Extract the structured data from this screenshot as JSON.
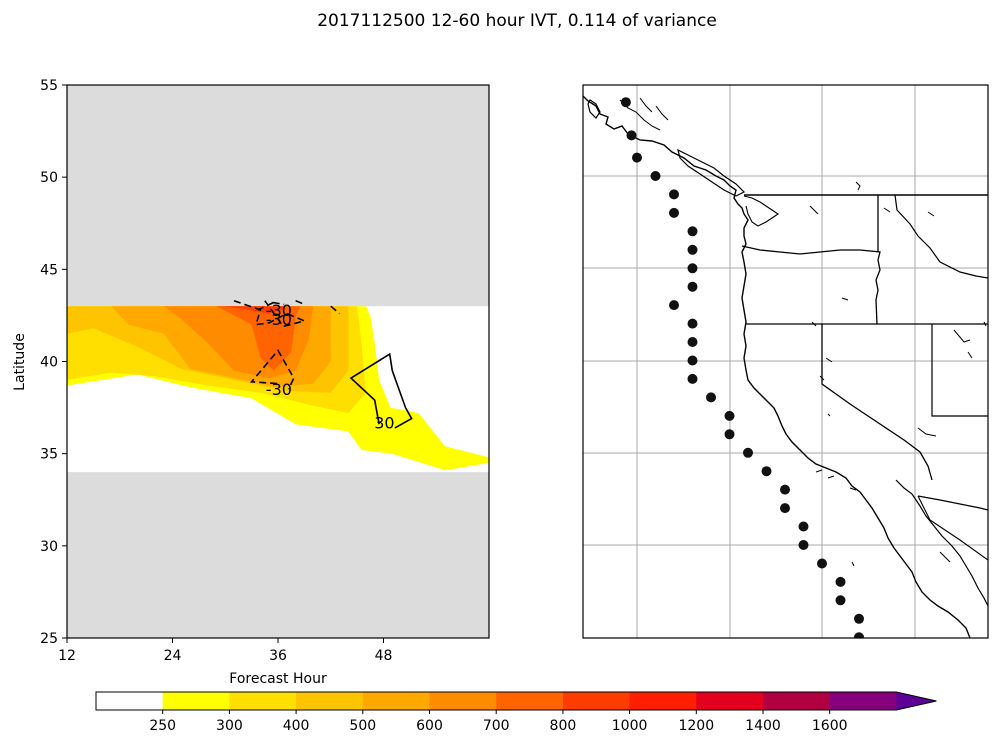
{
  "figure": {
    "title": "2017112500 12-60 hour IVT, 0.114 of variance"
  },
  "chart_data": [
    {
      "type": "contour",
      "xlabel": "Forecast Hour",
      "ylabel": "Latitude",
      "xlim": [
        12,
        60
      ],
      "ylim": [
        25,
        55
      ],
      "xticks": [
        12,
        24,
        36,
        48
      ],
      "yticks": [
        25,
        30,
        35,
        40,
        45,
        50,
        55
      ],
      "masked_regions": [
        {
          "lat_range": [
            43,
            55
          ],
          "color": "#dcdcdc"
        },
        {
          "lat_range": [
            25,
            34
          ],
          "color": "#dcdcdc"
        }
      ],
      "valid_lat_range": [
        34,
        43
      ],
      "filled_contours": [
        {
          "level": 250,
          "color": "#ffff00",
          "polygon": [
            [
              12,
              43
            ],
            [
              12,
              38.7
            ],
            [
              20,
              39.3
            ],
            [
              26,
              38.6
            ],
            [
              33,
              38
            ],
            [
              38,
              36.6
            ],
            [
              44,
              36.2
            ],
            [
              45.5,
              35.2
            ],
            [
              49,
              35
            ],
            [
              55,
              34.1
            ],
            [
              60,
              34.5
            ],
            [
              60,
              34.8
            ],
            [
              55,
              35.4
            ],
            [
              52,
              37.2
            ],
            [
              48.8,
              37.5
            ],
            [
              47.5,
              39
            ],
            [
              47,
              41
            ],
            [
              46.5,
              42.5
            ],
            [
              46,
              43
            ]
          ]
        },
        {
          "level": 300,
          "color": "#ffdf00",
          "polygon": [
            [
              12,
              43
            ],
            [
              12,
              39
            ],
            [
              17,
              39.4
            ],
            [
              22,
              39.2
            ],
            [
              28,
              38.7
            ],
            [
              34,
              38.3
            ],
            [
              40,
              37.6
            ],
            [
              44,
              37.2
            ],
            [
              46,
              38.3
            ],
            [
              45.5,
              41
            ],
            [
              45,
              43
            ]
          ]
        },
        {
          "level": 400,
          "color": "#ffc400",
          "polygon": [
            [
              12,
              43
            ],
            [
              12,
              41.5
            ],
            [
              15,
              41.8
            ],
            [
              20,
              40.8
            ],
            [
              25,
              39.6
            ],
            [
              31,
              39
            ],
            [
              37,
              38.4
            ],
            [
              42,
              38.3
            ],
            [
              44,
              39.5
            ],
            [
              44,
              43
            ]
          ]
        },
        {
          "level": 500,
          "color": "#ffa800",
          "polygon": [
            [
              17,
              43
            ],
            [
              19,
              42
            ],
            [
              23,
              41.5
            ],
            [
              26,
              39.6
            ],
            [
              31,
              39.1
            ],
            [
              36,
              38.6
            ],
            [
              40,
              38.8
            ],
            [
              42,
              40
            ],
            [
              42,
              43
            ]
          ]
        },
        {
          "level": 600,
          "color": "#ff8c00",
          "polygon": [
            [
              23,
              43
            ],
            [
              25,
              42.3
            ],
            [
              28,
              41
            ],
            [
              31,
              39.5
            ],
            [
              35,
              39.1
            ],
            [
              38,
              39.5
            ],
            [
              39.5,
              41.2
            ],
            [
              40,
              43
            ]
          ]
        },
        {
          "level": 700,
          "color": "#ff6400",
          "polygon": [
            [
              29,
              43
            ],
            [
              31,
              42.5
            ],
            [
              33,
              42
            ],
            [
              34,
              40.2
            ],
            [
              35.5,
              39.5
            ],
            [
              37.5,
              40.5
            ],
            [
              38,
              42.4
            ],
            [
              38.5,
              43
            ]
          ]
        },
        {
          "level": 800,
          "color": "#ff3c00",
          "polygon": [
            [
              30,
              43
            ],
            [
              32.5,
              42.8
            ],
            [
              35,
              42.6
            ],
            [
              36.5,
              42.8
            ],
            [
              37,
              43
            ]
          ]
        }
      ],
      "line_contours": [
        {
          "level": -30,
          "style": "dashed",
          "points": [
            [
              31,
              43.3
            ],
            [
              34,
              42.8
            ],
            [
              33.5,
              42
            ],
            [
              35,
              42.1
            ],
            [
              37,
              42.6
            ],
            [
              39,
              42.2
            ],
            [
              36.6,
              41.9
            ],
            [
              34.5,
              43.3
            ]
          ]
        },
        {
          "level": -30,
          "style": "dashed",
          "points": [
            [
              35.4,
              43.2
            ],
            [
              36.7,
              43.1
            ]
          ]
        },
        {
          "level": -30,
          "style": "dashed",
          "points": [
            [
              38,
              43.3
            ],
            [
              39,
              43.1
            ]
          ]
        },
        {
          "level": -30,
          "style": "dashed",
          "points": [
            [
              35.5,
              43.2
            ],
            [
              33.7,
              42.8
            ]
          ]
        },
        {
          "level": -30,
          "style": "dashed",
          "points": [
            [
              35.9,
              38.8
            ],
            [
              33,
              38.9
            ],
            [
              36,
              40.6
            ],
            [
              37.8,
              39.1
            ],
            [
              37.2,
              38.5
            ]
          ]
        },
        {
          "level": 30,
          "style": "solid",
          "points": [
            [
              47.5,
              36.6
            ],
            [
              47,
              37.9
            ],
            [
              44.3,
              39.1
            ],
            [
              48.7,
              40.4
            ],
            [
              49,
              39.5
            ],
            [
              50.5,
              37.5
            ],
            [
              51.2,
              36.9
            ],
            [
              49.3,
              36.4
            ]
          ]
        },
        {
          "level": -30,
          "style": "dashed",
          "points": [
            [
              42,
              43
            ],
            [
              43,
              42.6
            ]
          ]
        }
      ],
      "contour_labels": [
        {
          "text": "-30",
          "x": 36.1,
          "y": 42.3
        },
        {
          "text": "-30",
          "x": 36.1,
          "y": 42.8
        },
        {
          "text": "-30",
          "x": 36.1,
          "y": 38.5
        },
        {
          "text": "30",
          "x": 48.1,
          "y": 36.7
        }
      ],
      "colorbar": {
        "levels": [
          250,
          300,
          400,
          500,
          600,
          700,
          800,
          1000,
          1200,
          1400,
          1600
        ],
        "tick_labels": [
          "250",
          "300",
          "400",
          "500",
          "600",
          "700",
          "800",
          "1000",
          "1200",
          "1400",
          "1600"
        ],
        "colors": [
          "#ffffff",
          "#ffff00",
          "#ffdf00",
          "#ffc400",
          "#ffa800",
          "#ff8c00",
          "#ff6400",
          "#ff3c00",
          "#ff1e00",
          "#e3001f",
          "#b00042",
          "#86007e",
          "#5c0096"
        ],
        "extend": "max"
      }
    },
    {
      "type": "map",
      "region": "US West Coast",
      "gridlines": true,
      "state_borders": true,
      "points": [
        [
          -125.6,
          54
        ],
        [
          -125.3,
          52.2
        ],
        [
          -125,
          51
        ],
        [
          -124,
          50
        ],
        [
          -123,
          49
        ],
        [
          -123,
          48
        ],
        [
          -122,
          47
        ],
        [
          -122,
          46
        ],
        [
          -122,
          45
        ],
        [
          -122,
          44
        ],
        [
          -123,
          43
        ],
        [
          -122,
          42
        ],
        [
          -122,
          41
        ],
        [
          -122,
          40
        ],
        [
          -122,
          39
        ],
        [
          -121,
          38
        ],
        [
          -120,
          37
        ],
        [
          -120,
          36
        ],
        [
          -119,
          35
        ],
        [
          -118,
          34
        ],
        [
          -117,
          33
        ],
        [
          -117,
          32
        ],
        [
          -116,
          31
        ],
        [
          -116,
          30
        ],
        [
          -115,
          29
        ],
        [
          -114,
          28
        ],
        [
          -114,
          27
        ],
        [
          -113,
          26
        ],
        [
          -113,
          25
        ]
      ]
    }
  ]
}
